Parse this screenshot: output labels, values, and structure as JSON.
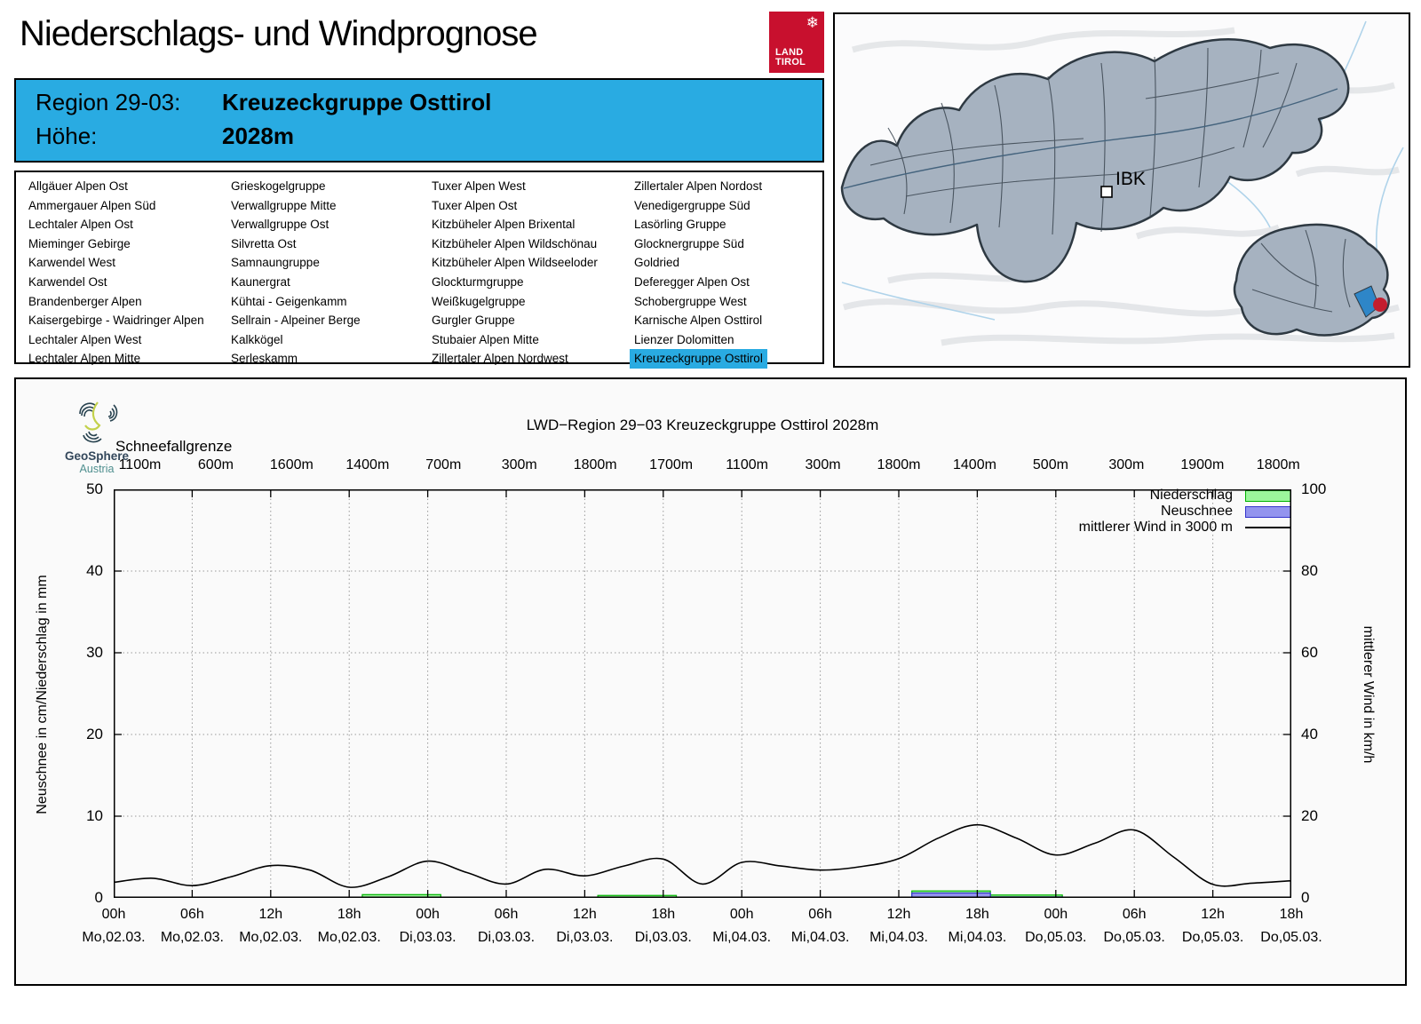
{
  "colors": {
    "accent_blue": "#29ABE2",
    "precip_fill": "#9CF69C",
    "precip_stroke": "#00B400",
    "snow_fill": "#9394EE",
    "snow_stroke": "#3333CC",
    "wind_line": "#000000",
    "map_region_fill": "#A6B2C0",
    "map_border": "#3A4550",
    "map_selected": "#2E86C8",
    "map_marker_red": "#C41E2F",
    "logo_red": "#C8102E"
  },
  "header": {
    "title": "Niederschlags- und Windprognose",
    "region_label": "Region 29-03:",
    "region_name": "Kreuzeckgruppe Osttirol",
    "altitude_label": "Höhe:",
    "altitude_value": "2028m"
  },
  "land_logo": {
    "snowflake": "❄",
    "line1": "LAND",
    "line2": "TIROL"
  },
  "map": {
    "city_label": "IBK"
  },
  "region_list": {
    "selected": "Kreuzeckgruppe Osttirol",
    "columns": [
      [
        "Allgäuer Alpen Ost",
        "Ammergauer Alpen Süd",
        "Lechtaler Alpen Ost",
        "Mieminger Gebirge",
        "Karwendel West",
        "Karwendel Ost",
        "Brandenberger Alpen",
        "Kaisergebirge - Waidringer Alpen",
        "Lechtaler Alpen West",
        "Lechtaler Alpen Mitte"
      ],
      [
        "Grieskogelgruppe",
        "Verwallgruppe Mitte",
        "Verwallgruppe Ost",
        "Silvretta Ost",
        "Samnaungruppe",
        "Kaunergrat",
        "Kühtai - Geigenkamm",
        "Sellrain - Alpeiner Berge",
        "Kalkkögel",
        "Serleskamm"
      ],
      [
        "Tuxer Alpen West",
        "Tuxer Alpen Ost",
        "Kitzbüheler Alpen Brixental",
        "Kitzbüheler Alpen Wildschönau",
        "Kitzbüheler Alpen Wildseeloder",
        "Glockturmgruppe",
        "Weißkugelgruppe",
        "Gurgler Gruppe",
        "Stubaier Alpen Mitte",
        "Zillertaler Alpen Nordwest"
      ],
      [
        "Zillertaler Alpen Nordost",
        "Venedigergruppe Süd",
        "Lasörling Gruppe",
        "Glocknergruppe Süd",
        "Goldried",
        "Deferegger Alpen Ost",
        "Schobergruppe West",
        "Karnische Alpen Osttirol",
        "Lienzer Dolomitten",
        "Kreuzeckgruppe Osttirol"
      ]
    ]
  },
  "chart": {
    "provider": {
      "name": "GeoSphere",
      "sub": "Austria"
    },
    "title": "LWD−Region 29−03 Kreuzeckgruppe Osttirol 2028m",
    "snowline_label": "Schneefallgrenze",
    "y_left_label": "Neuschnee in cm/Niederschlag in mm",
    "y_right_label": "mittlerer Wind in km/h",
    "legend": [
      {
        "label": "Niederschlag",
        "type": "box",
        "fill": "#9CF69C",
        "stroke": "#00B400"
      },
      {
        "label": "Neuschnee",
        "type": "box",
        "fill": "#9394EE",
        "stroke": "#3333CC"
      },
      {
        "label": "mittlerer Wind in 3000 m",
        "type": "line",
        "stroke": "#000000"
      }
    ]
  },
  "chart_data": {
    "type": "mixed",
    "title": "LWD−Region 29−03 Kreuzeckgruppe Osttirol 2028m",
    "x_axis": {
      "hours_total": 90,
      "tick_step_h": 6,
      "time_labels": [
        "00h",
        "06h",
        "12h",
        "18h",
        "00h",
        "06h",
        "12h",
        "18h",
        "00h",
        "06h",
        "12h",
        "18h",
        "00h",
        "06h",
        "12h",
        "18h"
      ],
      "date_labels": [
        "Mo,02.03.",
        "Mo,02.03.",
        "Mo,02.03.",
        "Mo,02.03.",
        "Di,03.03.",
        "Di,03.03.",
        "Di,03.03.",
        "Di,03.03.",
        "Mi,04.03.",
        "Mi,04.03.",
        "Mi,04.03.",
        "Mi,04.03.",
        "Do,05.03.",
        "Do,05.03.",
        "Do,05.03.",
        "Do,05.03."
      ]
    },
    "y_left": {
      "label": "Neuschnee in cm/Niederschlag in mm",
      "min": 0,
      "max": 50,
      "ticks": [
        0,
        10,
        20,
        30,
        40,
        50
      ]
    },
    "y_right": {
      "label": "mittlerer Wind in km/h",
      "min": 0,
      "max": 100,
      "ticks": [
        0,
        20,
        40,
        60,
        80,
        100
      ]
    },
    "snowline": {
      "label": "Schneefallgrenze",
      "values": [
        "1100m",
        "600m",
        "1600m",
        "1400m",
        "700m",
        "300m",
        "1800m",
        "1700m",
        "1100m",
        "300m",
        "1800m",
        "1400m",
        "500m",
        "300m",
        "1900m",
        "1800m"
      ]
    },
    "grid": {
      "horizontal": [
        10,
        20,
        30,
        40
      ],
      "vertical_step_h": 6,
      "style": "dotted"
    },
    "series": [
      {
        "name": "Niederschlag",
        "kind": "bar",
        "unit": "mm",
        "axis": "left",
        "segments": [
          {
            "from_h": 19,
            "to_h": 25,
            "value": 0.4
          },
          {
            "from_h": 37,
            "to_h": 43,
            "value": 0.3
          },
          {
            "from_h": 61,
            "to_h": 67,
            "value": 0.85
          },
          {
            "from_h": 67,
            "to_h": 72.5,
            "value": 0.35
          }
        ]
      },
      {
        "name": "Neuschnee",
        "kind": "bar",
        "unit": "cm",
        "axis": "left",
        "segments": [
          {
            "from_h": 61,
            "to_h": 67,
            "value": 0.6
          },
          {
            "from_h": 67,
            "to_h": 72.5,
            "value": 0.12
          }
        ]
      },
      {
        "name": "mittlerer Wind in 3000 m",
        "kind": "line",
        "unit": "km/h",
        "axis": "right",
        "x_hours": [
          0,
          3,
          6,
          9,
          12,
          15,
          18,
          21,
          24,
          27,
          30,
          33,
          36,
          39,
          42,
          45,
          48,
          51,
          54,
          57,
          60,
          63,
          66,
          69,
          72,
          75,
          78,
          81,
          84,
          87,
          90
        ],
        "values": [
          3.8,
          4.8,
          3.0,
          5.2,
          7.9,
          6.8,
          2.6,
          5.2,
          9.0,
          6.2,
          3.4,
          7.0,
          5.4,
          7.8,
          9.5,
          3.4,
          8.7,
          7.8,
          6.8,
          7.6,
          9.6,
          14.6,
          17.9,
          14.6,
          10.5,
          13.4,
          16.6,
          10.0,
          3.3,
          3.6,
          4.2
        ]
      }
    ],
    "legend_position": "top-right-inside"
  }
}
